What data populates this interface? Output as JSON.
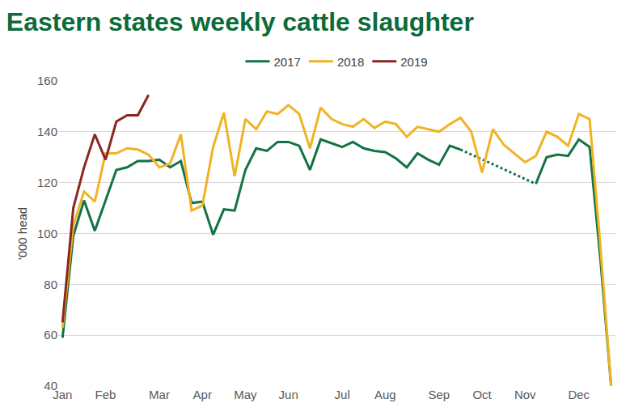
{
  "chart_data": {
    "type": "line",
    "title": "Eastern states weekly cattle slaughter",
    "y_label": "'000 head",
    "categories": [
      "Jan",
      null,
      null,
      null,
      "Feb",
      null,
      null,
      null,
      null,
      "Mar",
      null,
      null,
      null,
      "Apr",
      null,
      null,
      null,
      "May",
      null,
      null,
      null,
      "Jun",
      null,
      null,
      null,
      null,
      "Jul",
      null,
      null,
      null,
      "Aug",
      null,
      null,
      null,
      null,
      "Sep",
      null,
      null,
      null,
      "Oct",
      null,
      null,
      null,
      "Nov",
      null,
      null,
      null,
      null,
      "Dec",
      null,
      null,
      null
    ],
    "series": [
      {
        "name": "2017",
        "color": "#137244",
        "values": [
          59,
          99,
          113,
          101,
          113,
          125,
          126,
          128.5,
          128.5,
          129,
          126,
          128.5,
          112,
          112.5,
          99.5,
          109.5,
          109,
          125,
          133.5,
          132.5,
          136,
          136,
          134.5,
          125,
          137,
          135.5,
          134,
          136,
          133.5,
          132.5,
          132,
          129.5,
          126,
          131.5,
          129,
          127,
          134.5,
          133,
          null,
          null,
          null,
          null,
          null,
          null,
          119.5,
          130,
          131,
          130.5,
          137,
          134,
          90,
          40
        ]
      },
      {
        "name": "2018",
        "color": "#f0b323",
        "values": [
          63,
          103,
          116.5,
          112.5,
          131.5,
          131.5,
          133.5,
          133,
          131,
          126,
          127.5,
          139,
          109,
          111,
          134,
          147.5,
          122.5,
          145,
          141,
          148,
          147,
          150.5,
          147,
          133.5,
          149.5,
          145,
          143,
          142,
          145,
          141.5,
          144,
          143,
          138,
          142,
          141,
          140,
          143,
          145.5,
          140,
          124,
          141,
          135,
          131.5,
          128,
          130.5,
          140,
          138,
          134.5,
          147,
          145,
          95,
          40
        ]
      },
      {
        "name": "2019",
        "color": "#8c2621",
        "values": [
          65,
          110,
          126,
          139,
          129,
          144,
          146.5,
          146.5,
          154.5,
          null,
          null,
          null,
          null,
          null,
          null,
          null,
          null,
          null,
          null,
          null,
          null,
          null,
          null,
          null,
          null,
          null,
          null,
          null,
          null,
          null,
          null,
          null,
          null,
          null,
          null,
          null,
          null,
          null,
          null,
          null,
          null,
          null,
          null,
          null,
          null,
          null,
          null,
          null,
          null,
          null,
          null,
          null
        ]
      }
    ],
    "ylim": [
      40,
      160
    ],
    "yticks": [
      40,
      60,
      80,
      100,
      120,
      140,
      160
    ],
    "grid": true,
    "legend": "top"
  }
}
